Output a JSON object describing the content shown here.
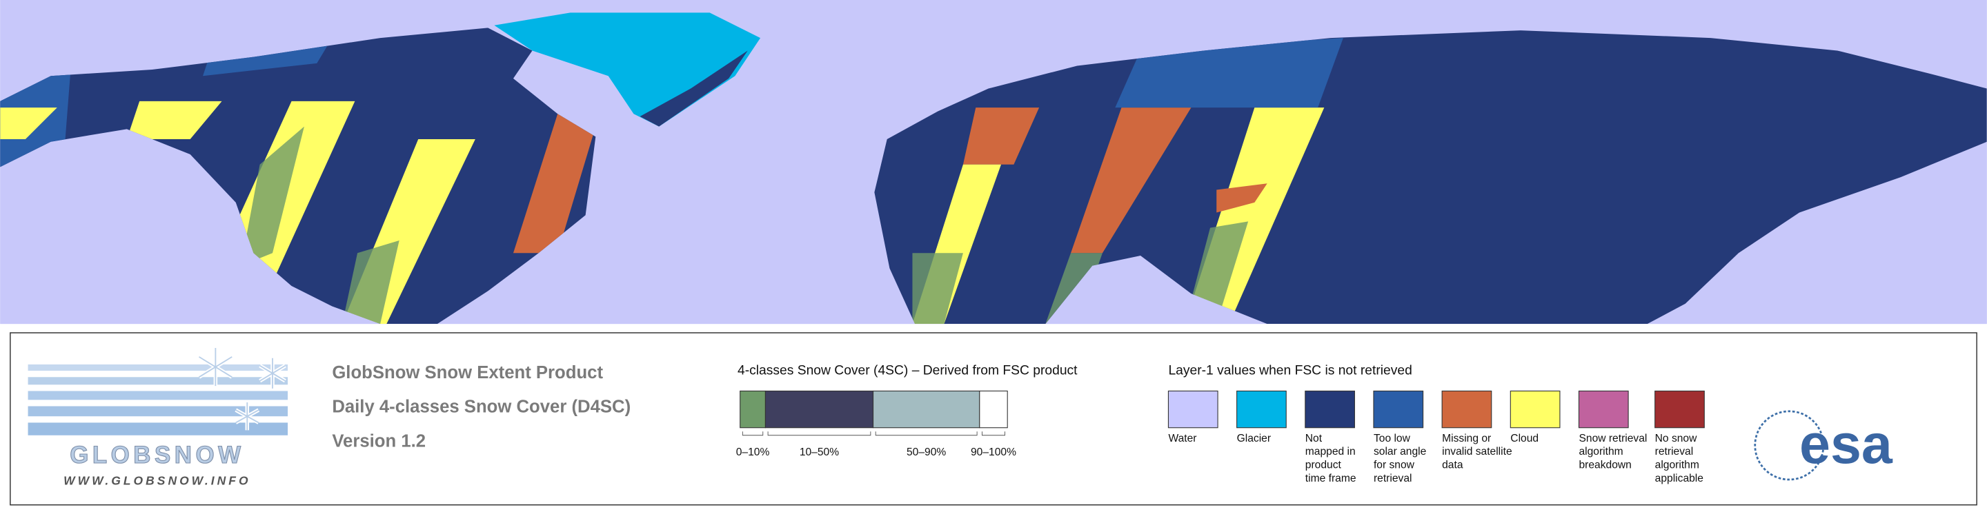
{
  "logo": {
    "name": "GLOBSNOW",
    "url": "WWW.GLOBSNOW.INFO"
  },
  "product": {
    "title": "GlobSnow Snow Extent Product",
    "subtitle": "Daily 4-classes Snow Cover (D4SC)",
    "version": "Version 1.2"
  },
  "snow_cover_legend": {
    "title": "4-classes Snow Cover (4SC) – Derived from FSC product",
    "classes": [
      {
        "label": "0–10%",
        "color": "#6f9b69"
      },
      {
        "label": "10–50%",
        "color": "#3f3f5f"
      },
      {
        "label": "50–90%",
        "color": "#a3bcc1"
      },
      {
        "label": "90–100%",
        "color": "#ffffff"
      }
    ]
  },
  "layer1_legend": {
    "title": "Layer-1 values when FSC is not retrieved",
    "items": [
      {
        "lines": [
          "Water"
        ],
        "color": "#c8c8ff"
      },
      {
        "lines": [
          "Glacier"
        ],
        "color": "#00b4e6"
      },
      {
        "lines": [
          "Not",
          "mapped in",
          "product",
          "time frame"
        ],
        "color": "#253a78"
      },
      {
        "lines": [
          "Too low",
          "solar angle",
          "for snow",
          "retrieval"
        ],
        "color": "#2a5ea8"
      },
      {
        "lines": [
          "Missing or",
          "invalid satellite",
          "data"
        ],
        "color": "#d0683e"
      },
      {
        "lines": [
          "Cloud"
        ],
        "color": "#ffff66"
      },
      {
        "lines": [
          "Snow retrieval",
          "algorithm",
          "breakdown"
        ],
        "color": "#c0629e"
      },
      {
        "lines": [
          "No snow",
          "retrieval",
          "algorithm",
          "applicable"
        ],
        "color": "#a02e30"
      }
    ]
  },
  "agency": "esa"
}
